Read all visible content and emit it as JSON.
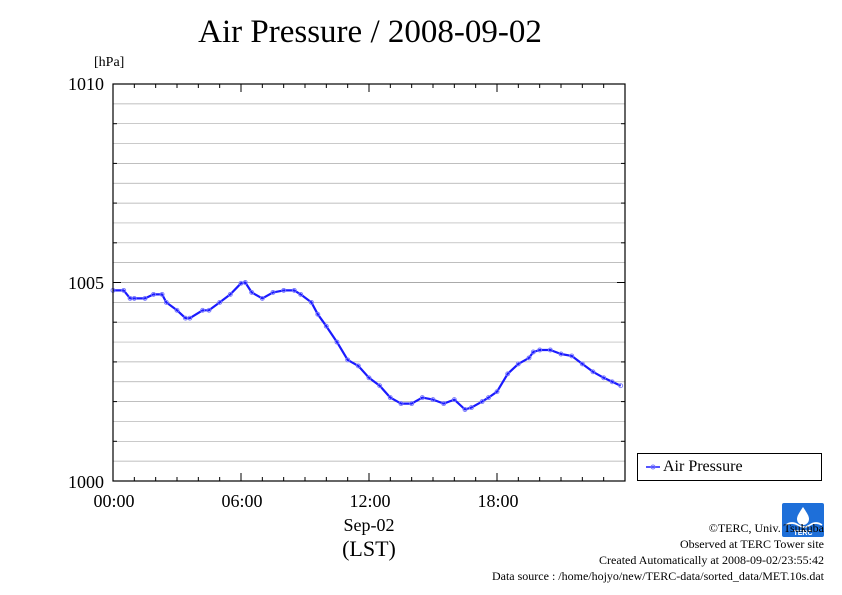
{
  "header": {
    "title": "Air Pressure / 2008-09-02"
  },
  "colors": {
    "series": "#1a1aff",
    "marker": "#7777ff",
    "grid": "#aaaaaa",
    "frame": "#000000"
  },
  "chart_data": {
    "type": "line",
    "title": "Air Pressure / 2008-09-02",
    "ylabel": "[hPa]",
    "xlabel": "Sep-02",
    "x_units": "hours (LST)",
    "xlim": [
      0,
      24
    ],
    "ylim": [
      1000,
      1010
    ],
    "grid": true,
    "legend_position": "right-bottom",
    "y_major_ticks": [
      {
        "value": 1000,
        "label": "1000"
      },
      {
        "value": 1005,
        "label": "1005"
      },
      {
        "value": 1010,
        "label": "1010"
      }
    ],
    "y_minor_ticks": [
      1001,
      1002,
      1003,
      1004,
      1006,
      1007,
      1008,
      1009
    ],
    "x_ticks": [
      {
        "value": 0,
        "label": "00:00"
      },
      {
        "value": 6,
        "label": "06:00"
      },
      {
        "value": 12,
        "label": "12:00"
      },
      {
        "value": 18,
        "label": "18:00"
      }
    ],
    "date_label": "Sep-02",
    "timezone_label": "(LST)",
    "series": [
      {
        "name": "Air Pressure",
        "x": [
          0,
          0.5,
          0.8,
          1.0,
          1.5,
          1.9,
          2.3,
          2.5,
          3.0,
          3.4,
          3.6,
          4.2,
          4.5,
          5.0,
          5.5,
          6.0,
          6.2,
          6.5,
          7.0,
          7.5,
          8.0,
          8.5,
          8.8,
          9.3,
          9.6,
          10.0,
          10.5,
          11.0,
          11.5,
          12.0,
          12.5,
          13.0,
          13.5,
          14.0,
          14.5,
          15.0,
          15.5,
          16.0,
          16.5,
          16.8,
          17.3,
          17.6,
          18.0,
          18.5,
          19.0,
          19.5,
          19.7,
          20.0,
          20.5,
          21.0,
          21.5,
          22.0,
          22.5,
          23.0,
          23.4,
          23.8
        ],
        "values": [
          1004.8,
          1004.8,
          1004.6,
          1004.6,
          1004.6,
          1004.7,
          1004.7,
          1004.5,
          1004.3,
          1004.1,
          1004.1,
          1004.3,
          1004.3,
          1004.5,
          1004.7,
          1004.98,
          1005.0,
          1004.75,
          1004.6,
          1004.75,
          1004.8,
          1004.8,
          1004.7,
          1004.5,
          1004.2,
          1003.9,
          1003.5,
          1003.05,
          1002.9,
          1002.6,
          1002.4,
          1002.1,
          1001.95,
          1001.95,
          1002.1,
          1002.05,
          1001.95,
          1002.05,
          1001.8,
          1001.85,
          1002.0,
          1002.1,
          1002.25,
          1002.7,
          1002.95,
          1003.1,
          1003.25,
          1003.3,
          1003.3,
          1003.2,
          1003.15,
          1002.95,
          1002.75,
          1002.6,
          1002.5,
          1002.4
        ]
      }
    ]
  },
  "legend": {
    "label": "Air Pressure"
  },
  "credits": {
    "line1": "©TERC, Univ. Tsukuba",
    "line2": "Observed at TERC Tower site",
    "line3": "Created Automatically at 2008-09-02/23:55:42",
    "line4": "Data source : /home/hojyo/new/TERC-data/sorted_data/MET.10s.dat"
  },
  "logo": {
    "text": "TERC",
    "color": "#1e6fd9"
  }
}
